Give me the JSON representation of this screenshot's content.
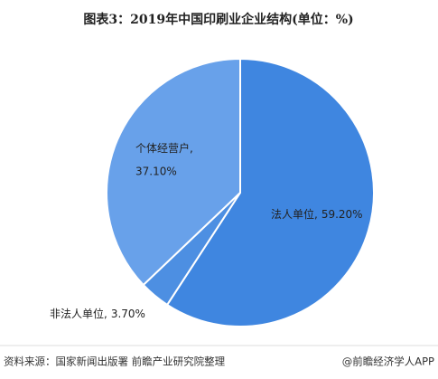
{
  "chart_data": {
    "type": "pie",
    "title": "图表3：2019年中国印刷业企业结构(单位：%)",
    "categories": [
      "法人单位,",
      "非法人单位,",
      "个体经营户,"
    ],
    "values": [
      59.2,
      3.7,
      37.1
    ],
    "value_labels": [
      "59.20%",
      "3.70%",
      "37.10%"
    ],
    "colors": [
      "#3f86e0",
      "#4d8fe2",
      "#68a1ea"
    ]
  },
  "footer": {
    "source": "资料来源：国家新闻出版署 前瞻产业研究院整理",
    "brand": "@前瞻经济学人APP"
  }
}
